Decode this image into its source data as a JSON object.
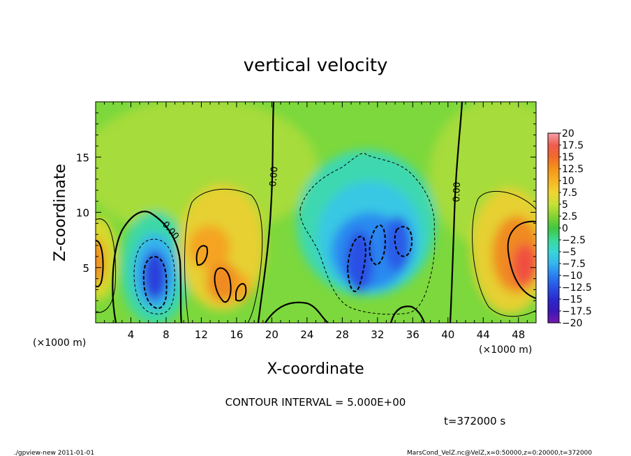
{
  "chart_data": {
    "type": "heatmap",
    "title": "vertical velocity",
    "xlabel": "X-coordinate",
    "ylabel": "Z-coordinate",
    "x_unit_left": "(×1000 m)",
    "x_unit_right": "(×1000 m)",
    "xlim": [
      0,
      50
    ],
    "ylim": [
      0,
      20
    ],
    "x_ticks": [
      "4",
      "8",
      "12",
      "16",
      "20",
      "24",
      "28",
      "32",
      "36",
      "40",
      "44",
      "48"
    ],
    "y_ticks": [
      "5",
      "10",
      "15"
    ],
    "colorbar_labels": [
      "20",
      "17.5",
      "15",
      "12.5",
      "10",
      "7.5",
      "5",
      "2.5",
      "0",
      "−2.5",
      "−5",
      "−7.5",
      "−10",
      "−12.5",
      "−15",
      "−17.5",
      "−20"
    ],
    "colorbar_colors": [
      "#f4a0a8",
      "#f05a50",
      "#f06a2a",
      "#f4941c",
      "#f6b424",
      "#f0d434",
      "#c6e038",
      "#84d234",
      "#40c640",
      "#3cd898",
      "#38d6d8",
      "#36b4ee",
      "#2a7ef0",
      "#2a50e4",
      "#2a2ace",
      "#3a18b4",
      "#7618b0"
    ],
    "features": [
      {
        "kind": "updraft",
        "x": 0,
        "z": 5.5,
        "value": 12
      },
      {
        "kind": "downdraft",
        "x": 7,
        "z": 3.7,
        "value": -14
      },
      {
        "kind": "updraft",
        "x": 12.5,
        "z": 5.5,
        "value": 10
      },
      {
        "kind": "updraft",
        "x": 14.5,
        "z": 3.5,
        "value": 12
      },
      {
        "kind": "downdraft",
        "x": 31,
        "z": 6,
        "value": -12
      },
      {
        "kind": "updraft",
        "x": 48,
        "z": 5,
        "value": 17
      }
    ],
    "contour_labels": [
      "0.00",
      "0.00",
      "0.00"
    ],
    "contour_interval_text": "CONTOUR INTERVAL = 5.000E+00",
    "time_text": "t=372000  s",
    "footer_left": "./gpview-new  2011-01-01",
    "footer_right": "MarsCond_VelZ.nc@VelZ,x=0:50000,z=0:20000,t=372000",
    "grid": false,
    "legend": "right"
  }
}
